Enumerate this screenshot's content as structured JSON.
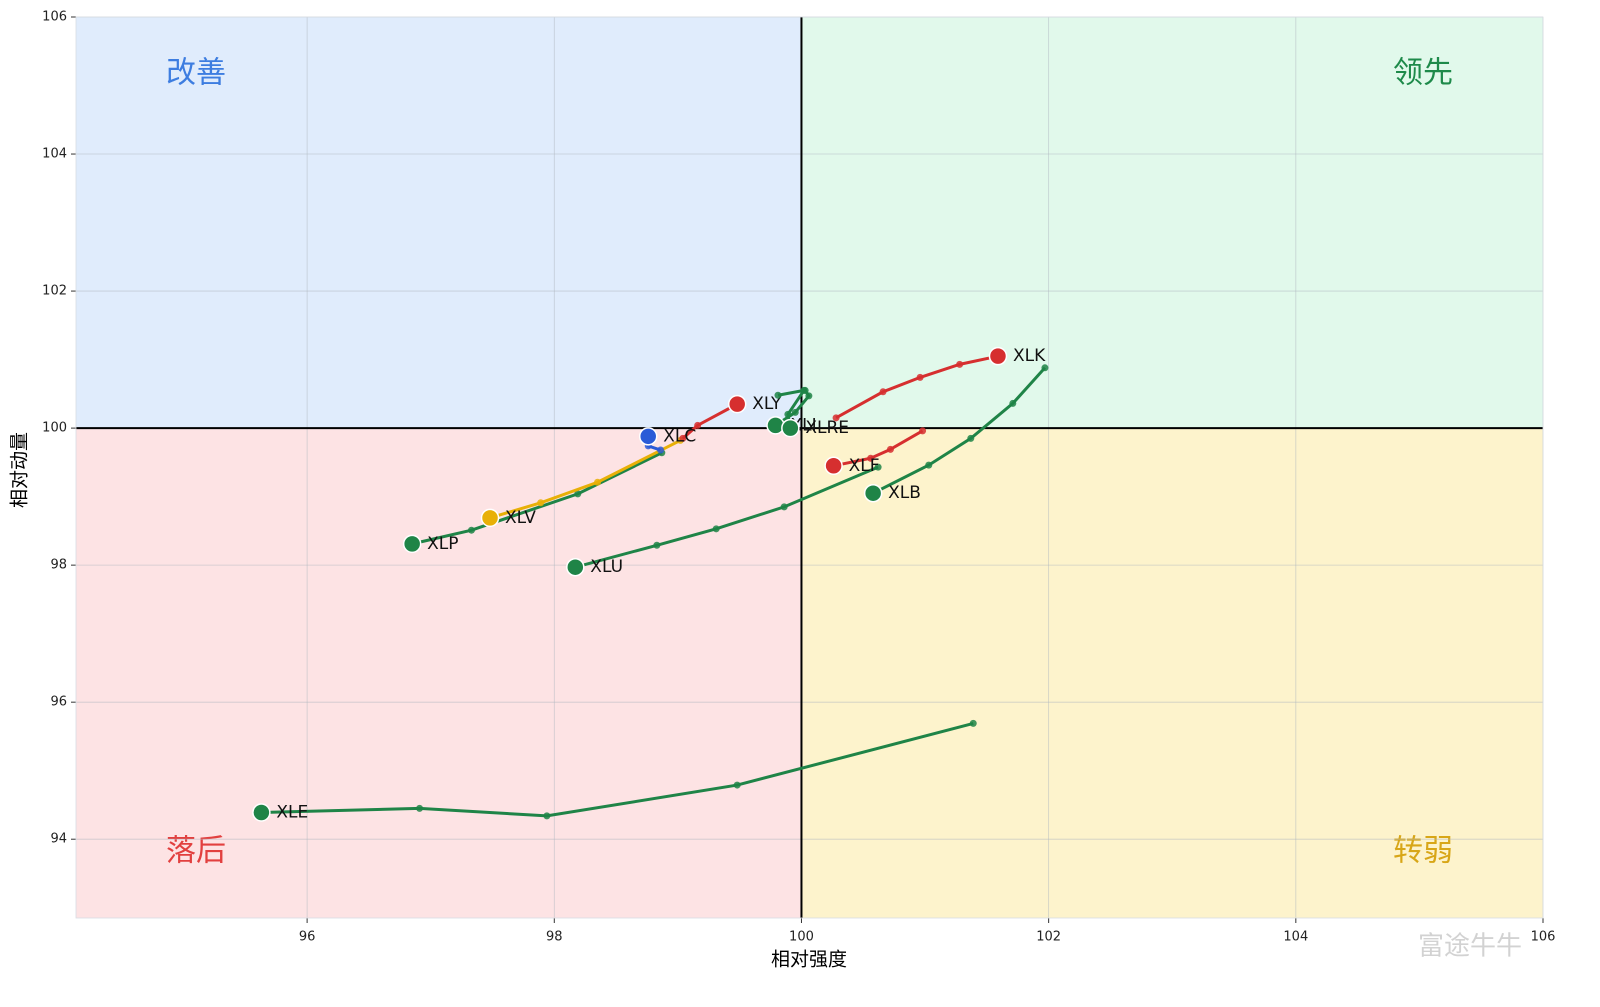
{
  "chart_data": {
    "type": "rotation",
    "xlabel": "相对强度",
    "ylabel": "相对动量",
    "xlim": [
      94.13,
      106
    ],
    "ylim": [
      92.85,
      106
    ],
    "xticks": [
      96,
      98,
      100,
      102,
      104,
      106
    ],
    "yticks": [
      94,
      96,
      98,
      100,
      102,
      104,
      106
    ],
    "center": [
      100,
      100
    ],
    "grid": true,
    "quadrants": [
      {
        "name": "改善",
        "corner": "top-left",
        "color": "#3d7de0",
        "background": "#e0ecfc"
      },
      {
        "name": "领先",
        "corner": "top-right",
        "color": "#1e8a4a",
        "background": "#e1f9eb"
      },
      {
        "name": "落后",
        "corner": "bottom-left",
        "color": "#e2403f",
        "background": "#fde3e4"
      },
      {
        "name": "转弱",
        "corner": "bottom-right",
        "color": "#d8a617",
        "background": "#fdf3cc"
      }
    ],
    "series": [
      {
        "name": "XLE",
        "color": "#1f8447",
        "x": [
          101.39,
          99.48,
          97.94,
          96.91,
          95.63
        ],
        "y": [
          95.69,
          94.79,
          94.34,
          94.45,
          94.39
        ]
      },
      {
        "name": "XLK",
        "color": "#d62f2f",
        "x": [
          100.28,
          100.66,
          100.96,
          101.28,
          101.59
        ],
        "y": [
          100.15,
          100.53,
          100.74,
          100.93,
          101.05
        ]
      },
      {
        "name": "XLB",
        "color": "#1f8447",
        "x": [
          101.97,
          101.71,
          101.37,
          101.03,
          100.58
        ],
        "y": [
          100.88,
          100.36,
          99.85,
          99.46,
          99.05
        ]
      },
      {
        "name": "XLU",
        "color": "#1f8447",
        "x": [
          100.62,
          99.86,
          99.31,
          98.83,
          98.17
        ],
        "y": [
          99.43,
          98.85,
          98.53,
          98.29,
          97.97
        ]
      },
      {
        "name": "XLP",
        "color": "#1f8447",
        "x": [
          98.87,
          98.19,
          97.33,
          96.85
        ],
        "y": [
          99.64,
          99.04,
          98.51,
          98.31
        ]
      },
      {
        "name": "XLV",
        "color": "#e8b007",
        "x": [
          99.02,
          98.35,
          97.89,
          97.48
        ],
        "y": [
          99.82,
          99.21,
          98.91,
          98.69
        ]
      },
      {
        "name": "XLY",
        "color": "#d62f2f",
        "x": [
          99.04,
          99.16,
          99.48
        ],
        "y": [
          99.85,
          100.04,
          100.35
        ]
      },
      {
        "name": "XLC",
        "color": "#2a5bd7",
        "x": [
          98.86,
          98.76,
          98.76
        ],
        "y": [
          99.68,
          99.74,
          99.88
        ]
      },
      {
        "name": "XLF",
        "color": "#d62f2f",
        "x": [
          100.98,
          100.72,
          100.56,
          100.26
        ],
        "y": [
          99.96,
          99.69,
          99.56,
          99.45
        ]
      },
      {
        "name": "XLI",
        "color": "#1f8447",
        "x": [
          100.03,
          100.06,
          99.95,
          99.79
        ],
        "y": [
          100.55,
          100.47,
          100.23,
          100.04
        ]
      },
      {
        "name": "XLRE",
        "color": "#1f8447",
        "x": [
          99.81,
          100.02,
          99.89,
          99.91
        ],
        "y": [
          100.48,
          100.55,
          100.2,
          100.0
        ]
      }
    ]
  },
  "watermark": "富途牛牛"
}
